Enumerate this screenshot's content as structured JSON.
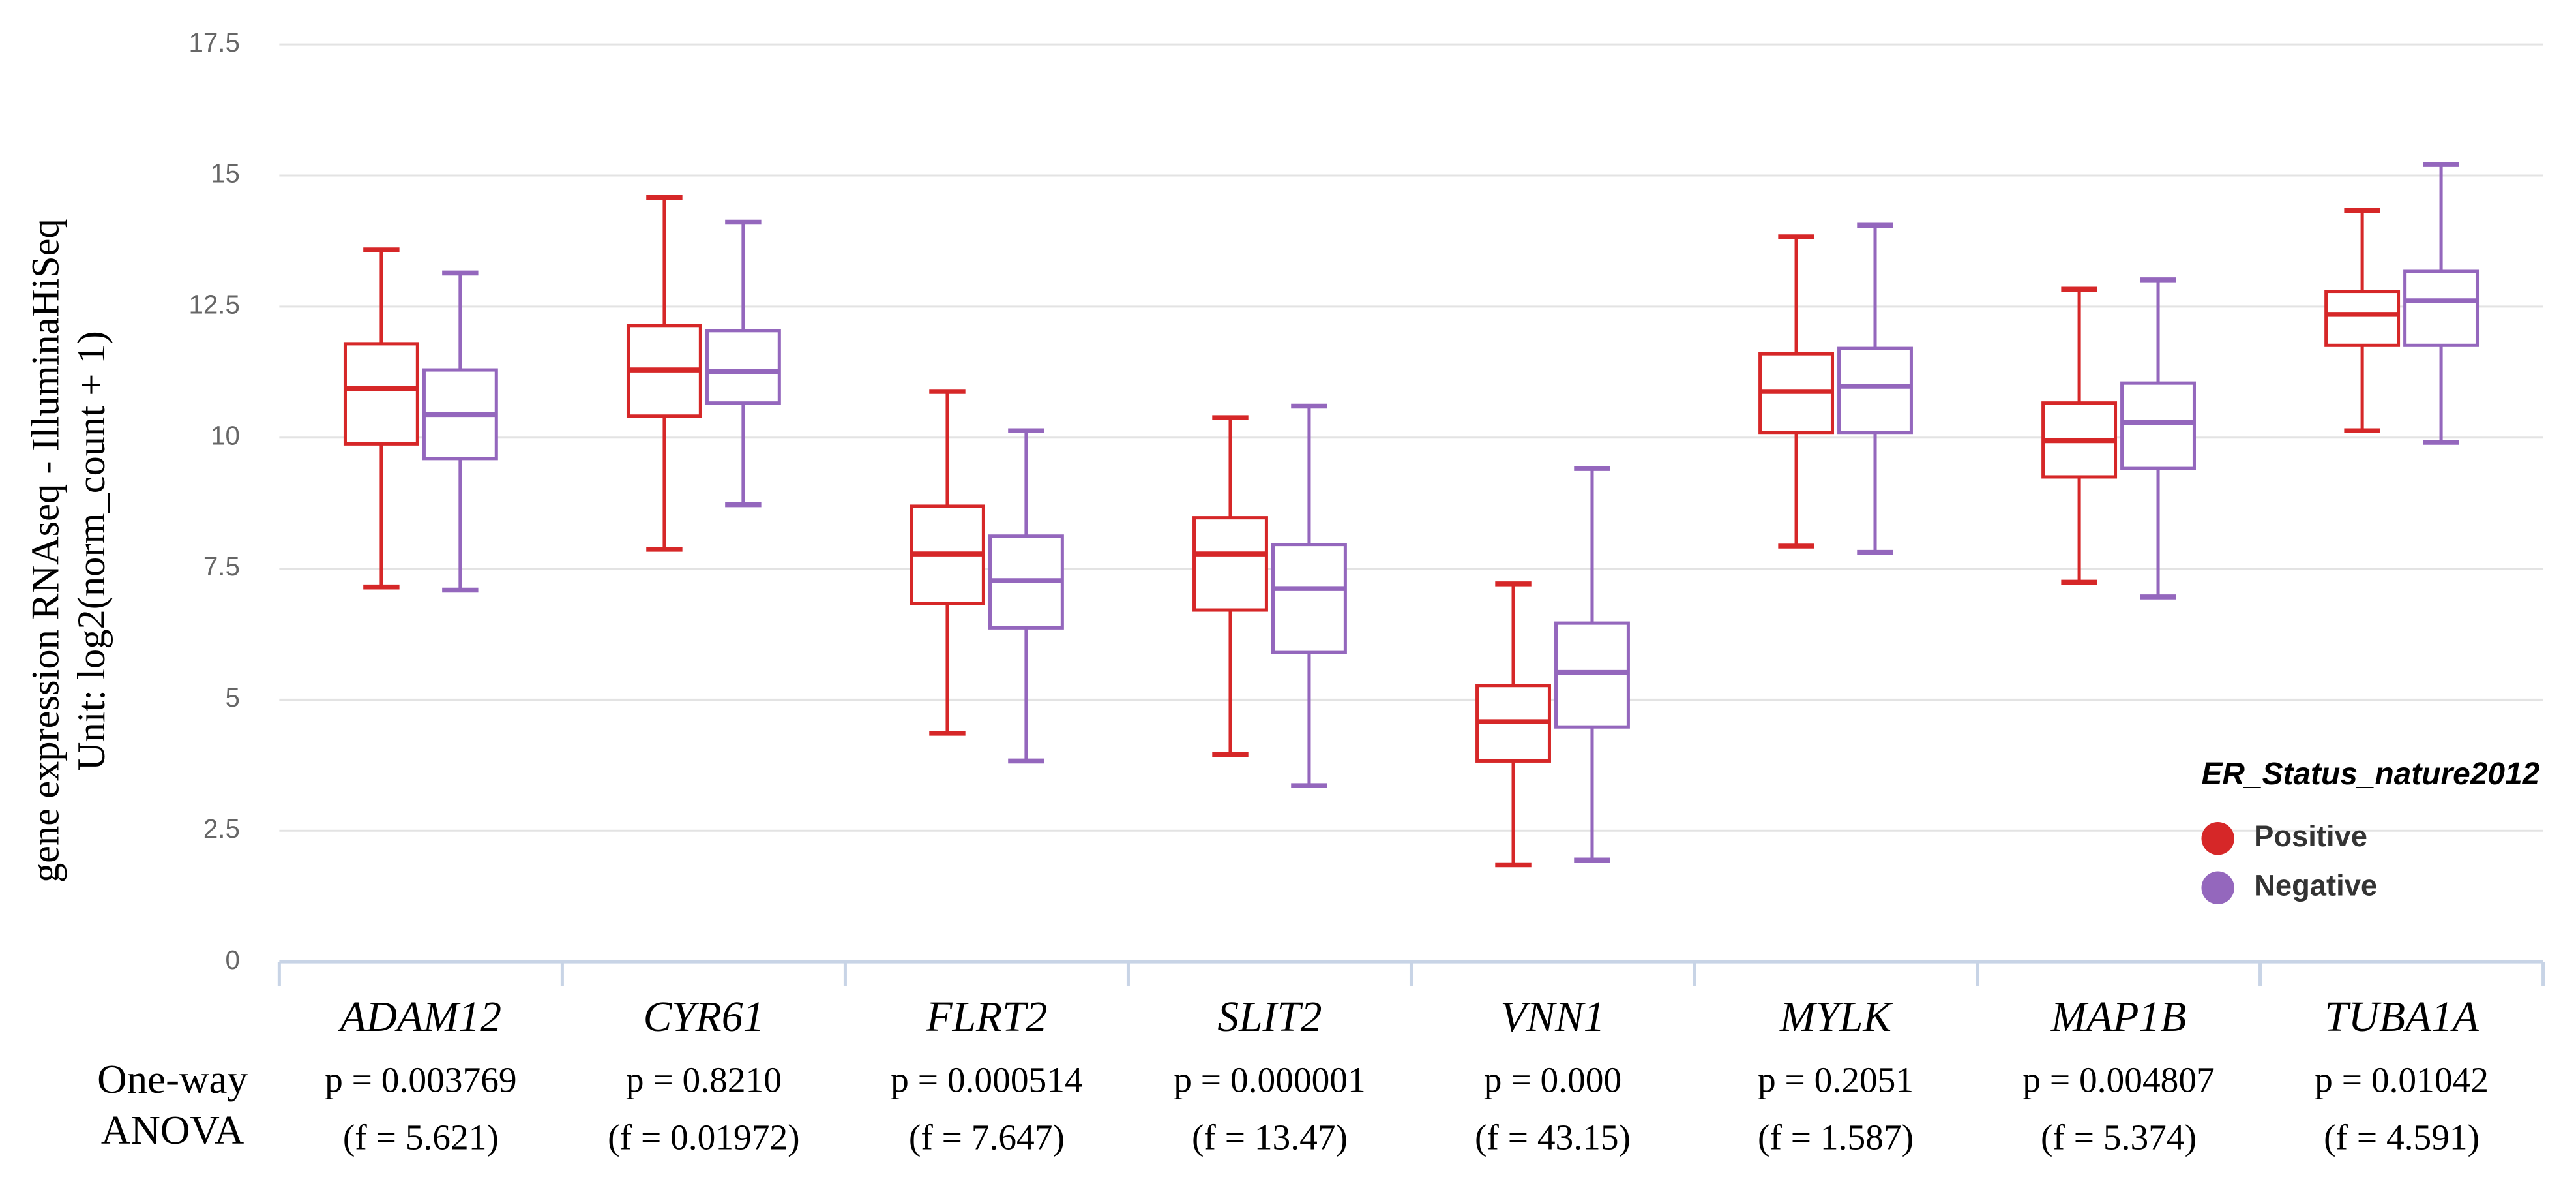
{
  "chart_data": {
    "type": "box",
    "y_label": [
      "gene expression RNAseq - IlluminaHiSeq",
      "Unit: log2(norm_count + 1)"
    ],
    "categories": [
      "ADAM12",
      "CYR61",
      "FLRT2",
      "SLIT2",
      "VNN1",
      "MYLK",
      "MAP1B",
      "TUBA1A"
    ],
    "ylim": [
      0,
      17.5
    ],
    "yticks": [
      0,
      2.5,
      5,
      7.5,
      10,
      12.5,
      15,
      17.5
    ],
    "grid": true,
    "legend_title": "ER_Status_nature2012",
    "legend_position": "right",
    "series": [
      {
        "name": "Positive",
        "color": "#d62728",
        "min": [
          7.15,
          7.87,
          4.36,
          3.95,
          1.85,
          7.93,
          7.24,
          10.13
        ],
        "q1": [
          9.88,
          10.41,
          6.84,
          6.71,
          3.83,
          10.1,
          9.25,
          11.76
        ],
        "median": [
          10.94,
          11.29,
          7.78,
          7.78,
          4.58,
          10.88,
          9.94,
          12.35
        ],
        "q3": [
          11.79,
          12.14,
          8.69,
          8.47,
          5.27,
          11.6,
          10.66,
          12.79
        ],
        "max": [
          13.58,
          14.58,
          10.88,
          10.38,
          7.21,
          13.83,
          12.83,
          14.33
        ]
      },
      {
        "name": "Negative",
        "color": "#9467bd",
        "min": [
          7.09,
          8.72,
          3.83,
          3.36,
          1.94,
          7.81,
          6.96,
          9.91
        ],
        "q1": [
          9.6,
          10.66,
          6.37,
          5.9,
          4.48,
          10.1,
          9.41,
          11.76
        ],
        "median": [
          10.44,
          11.26,
          7.27,
          7.12,
          5.52,
          10.98,
          10.29,
          12.61
        ],
        "q3": [
          11.29,
          12.04,
          8.12,
          7.96,
          6.46,
          11.7,
          11.04,
          13.17
        ],
        "max": [
          13.14,
          14.11,
          10.13,
          10.6,
          9.41,
          14.05,
          13.01,
          15.21
        ]
      }
    ],
    "anova": {
      "label": [
        "One-way",
        "ANOVA"
      ],
      "p_values": [
        "p = 0.003769",
        "p = 0.8210",
        "p = 0.000514",
        "p = 0.000001",
        "p = 0.000",
        "p = 0.2051",
        "p = 0.004807",
        "p = 0.01042"
      ],
      "f_values": [
        "(f = 5.621)",
        "(f = 0.01972)",
        "(f = 7.647)",
        "(f = 13.47)",
        "(f = 43.15)",
        "(f = 1.587)",
        "(f = 5.374)",
        "(f = 4.591)"
      ]
    }
  }
}
